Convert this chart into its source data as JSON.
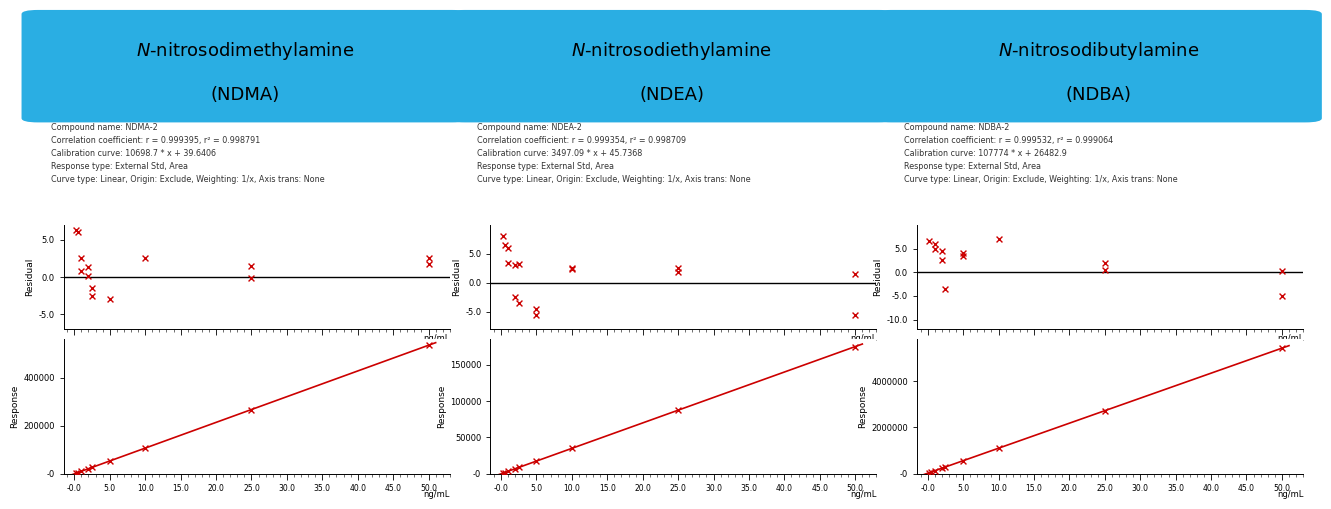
{
  "compounds": [
    {
      "title_line1": "N-nitrosodimethylamine",
      "title_line2": "(NDMA)",
      "compound_name": "NDMA-2",
      "r": "0.999395",
      "r2": "0.998791",
      "cal_curve": "10698.7 * x + 39.6406",
      "slope": 10698.7,
      "intercept": 39.6406,
      "response_type": "External Std, Area",
      "curve_type": "Linear, Origin: Exclude, Weighting: 1/x, Axis trans: None",
      "residual_points": [
        [
          0.25,
          6.3
        ],
        [
          0.5,
          6.0
        ],
        [
          1.0,
          2.5
        ],
        [
          1.0,
          0.8
        ],
        [
          2.0,
          1.3
        ],
        [
          2.0,
          0.1
        ],
        [
          2.5,
          -1.5
        ],
        [
          2.5,
          -2.5
        ],
        [
          5.0,
          -3.0
        ],
        [
          10.0,
          2.5
        ],
        [
          25.0,
          1.5
        ],
        [
          25.0,
          -0.1
        ],
        [
          50.0,
          2.5
        ],
        [
          50.0,
          1.8
        ]
      ],
      "residual_ylim": [
        -7,
        7
      ],
      "residual_yticks": [
        -5.0,
        0.0,
        5.0
      ],
      "cal_points_x": [
        0.25,
        0.5,
        1.0,
        2.0,
        2.5,
        5.0,
        10.0,
        25.0,
        50.0
      ],
      "cal_points_y": [
        2700,
        5400,
        10740,
        21440,
        26786,
        53530,
        106987,
        267468,
        534979
      ],
      "response_ylim": [
        0,
        560000
      ],
      "response_yticks": [
        0,
        200000,
        400000
      ],
      "x_range": [
        -0.0,
        50.0
      ]
    },
    {
      "title_line1": "N-nitrosodiethylamine",
      "title_line2": "(NDEA)",
      "compound_name": "NDEA-2",
      "r": "0.999354",
      "r2": "0.998709",
      "cal_curve": "3497.09 * x + 45.7368",
      "slope": 3497.09,
      "intercept": 45.7368,
      "response_type": "External Std, Area",
      "curve_type": "Linear, Origin: Exclude, Weighting: 1/x, Axis trans: None",
      "residual_points": [
        [
          0.25,
          8.0
        ],
        [
          0.5,
          6.5
        ],
        [
          1.0,
          6.0
        ],
        [
          1.0,
          3.5
        ],
        [
          2.0,
          3.0
        ],
        [
          2.5,
          3.2
        ],
        [
          2.0,
          -2.5
        ],
        [
          2.5,
          -3.5
        ],
        [
          5.0,
          -4.5
        ],
        [
          5.0,
          -5.5
        ],
        [
          10.0,
          2.5
        ],
        [
          10.0,
          2.3
        ],
        [
          25.0,
          2.5
        ],
        [
          25.0,
          1.8
        ],
        [
          50.0,
          1.5
        ],
        [
          50.0,
          -5.5
        ]
      ],
      "residual_ylim": [
        -8,
        10
      ],
      "residual_yticks": [
        -5.0,
        0.0,
        5.0
      ],
      "cal_points_x": [
        0.25,
        0.5,
        1.0,
        2.0,
        2.5,
        5.0,
        10.0,
        25.0,
        50.0
      ],
      "cal_points_y": [
        920,
        1795,
        3543,
        7040,
        8789,
        17531,
        34971,
        87473,
        174901
      ],
      "response_ylim": [
        0,
        185000
      ],
      "response_yticks": [
        0,
        50000,
        100000,
        150000
      ],
      "x_range": [
        -0.0,
        50.0
      ]
    },
    {
      "title_line1": "N-nitrosodibutylamine",
      "title_line2": "(NDBA)",
      "compound_name": "NDBA-2",
      "r": "0.999532",
      "r2": "0.999064",
      "cal_curve": "107774 * x + 26482.9",
      "slope": 107774,
      "intercept": 26482.9,
      "response_type": "External Std, Area",
      "curve_type": "Linear, Origin: Exclude, Weighting: 1/x, Axis trans: None",
      "residual_points": [
        [
          0.25,
          6.5
        ],
        [
          1.0,
          6.0
        ],
        [
          1.0,
          5.0
        ],
        [
          2.0,
          4.5
        ],
        [
          2.0,
          2.5
        ],
        [
          2.5,
          -3.5
        ],
        [
          5.0,
          4.0
        ],
        [
          5.0,
          3.5
        ],
        [
          10.0,
          7.0
        ],
        [
          25.0,
          2.0
        ],
        [
          25.0,
          0.5
        ],
        [
          50.0,
          0.3
        ],
        [
          50.0,
          -5.0
        ]
      ],
      "residual_ylim": [
        -12,
        10
      ],
      "residual_yticks": [
        -10.0,
        -5.0,
        0.0,
        5.0
      ],
      "cal_points_x": [
        0.25,
        0.5,
        1.0,
        2.0,
        2.5,
        5.0,
        10.0,
        25.0,
        50.0
      ],
      "cal_points_y": [
        53436,
        80360,
        134257,
        242031,
        296417,
        566352,
        1104223,
        2720333,
        5415182
      ],
      "response_ylim": [
        0,
        5800000
      ],
      "response_yticks": [
        0,
        2000000,
        4000000
      ],
      "x_range": [
        -0.0,
        50.0
      ]
    }
  ],
  "header_bg_color": "#2aaee3",
  "header_text_color": "#000000",
  "line_color": "#cc0000",
  "marker_color": "#cc0000",
  "axis_line_color": "#000000",
  "text_color": "#333333",
  "bg_color": "#ffffff",
  "x_ticks": [
    0.0,
    5.0,
    10.0,
    15.0,
    20.0,
    25.0,
    30.0,
    35.0,
    40.0,
    45.0,
    50.0
  ],
  "x_tick_labels": [
    "-0.0",
    "5.0",
    "10.0",
    "15.0",
    "20.0",
    "25.0",
    "30.0",
    "35.0",
    "40.0",
    "45.0",
    "50.0"
  ],
  "xlabel": "ng/mL",
  "ylabel_residual": "Residual",
  "ylabel_response": "Response"
}
